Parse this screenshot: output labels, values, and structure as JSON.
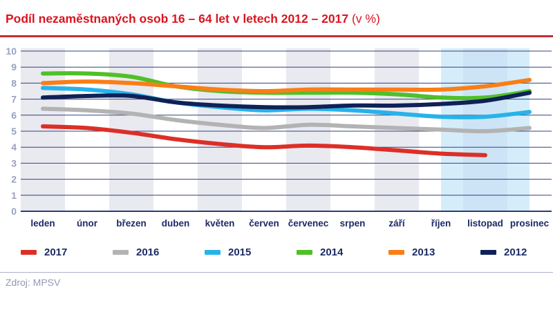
{
  "title": {
    "main": "Podíl nezaměstnaných osob 16 – 64 let v letech 2012 – 2017",
    "suffix": " (v %)"
  },
  "source": "Zdroj: MPSV",
  "colors": {
    "title_red": "#db1420",
    "rule_red": "#c32b35",
    "grid": "#31417f",
    "zero_line": "#2c3b76",
    "ytick_text": "#99a1c2",
    "xtick_text": "#1c2a66",
    "legend_text": "#1c2a66",
    "band_gray": "#e9e9f0",
    "highlight_blue": "#b7e0f8",
    "divider_gray": "#abb0c8",
    "source_gray": "#9297b5"
  },
  "chart_data": {
    "type": "line",
    "title": "Podíl nezaměstnaných osob 16 – 64 let v letech 2012 – 2017 (v %)",
    "xlabel": "",
    "ylabel": "",
    "ylim": [
      0,
      10
    ],
    "yticks": [
      0,
      1,
      2,
      3,
      4,
      5,
      6,
      7,
      8,
      9,
      10
    ],
    "grid": true,
    "legend_position": "bottom",
    "categories": [
      "leden",
      "únor",
      "březen",
      "duben",
      "květen",
      "červen",
      "červenec",
      "srpen",
      "září",
      "říjen",
      "listopad",
      "prosinec"
    ],
    "shaded_month_columns": [
      "leden",
      "březen",
      "květen",
      "červenec",
      "září",
      "listopad"
    ],
    "highlight_band": {
      "from": "říjen (střed)",
      "to": "prosinec (střed)",
      "color": "#b7e0f8"
    },
    "series": [
      {
        "name": "2017",
        "color": "#dc2f27",
        "values": [
          5.3,
          5.2,
          4.9,
          4.5,
          4.2,
          4.0,
          4.1,
          4.0,
          3.8,
          3.6,
          3.5
        ]
      },
      {
        "name": "2016",
        "color": "#b3b3b3",
        "values": [
          6.4,
          6.3,
          6.1,
          5.7,
          5.4,
          5.2,
          5.4,
          5.3,
          5.2,
          5.1,
          5.0,
          5.2
        ]
      },
      {
        "name": "2015",
        "color": "#26b3ea",
        "values": [
          7.7,
          7.6,
          7.3,
          6.8,
          6.5,
          6.3,
          6.4,
          6.3,
          6.1,
          5.9,
          5.9,
          6.2
        ]
      },
      {
        "name": "2014",
        "color": "#50c028",
        "values": [
          8.6,
          8.6,
          8.4,
          7.8,
          7.5,
          7.4,
          7.4,
          7.4,
          7.3,
          7.1,
          7.1,
          7.5
        ]
      },
      {
        "name": "2013",
        "color": "#f97e17",
        "values": [
          8.0,
          8.1,
          8.0,
          7.8,
          7.6,
          7.5,
          7.6,
          7.6,
          7.6,
          7.6,
          7.8,
          8.2
        ]
      },
      {
        "name": "2012",
        "color": "#0f2156",
        "values": [
          7.1,
          7.2,
          7.2,
          6.8,
          6.6,
          6.5,
          6.5,
          6.6,
          6.6,
          6.7,
          6.9,
          7.4
        ]
      }
    ]
  },
  "legend": {
    "items": [
      "2017",
      "2016",
      "2015",
      "2014",
      "2013",
      "2012"
    ]
  }
}
